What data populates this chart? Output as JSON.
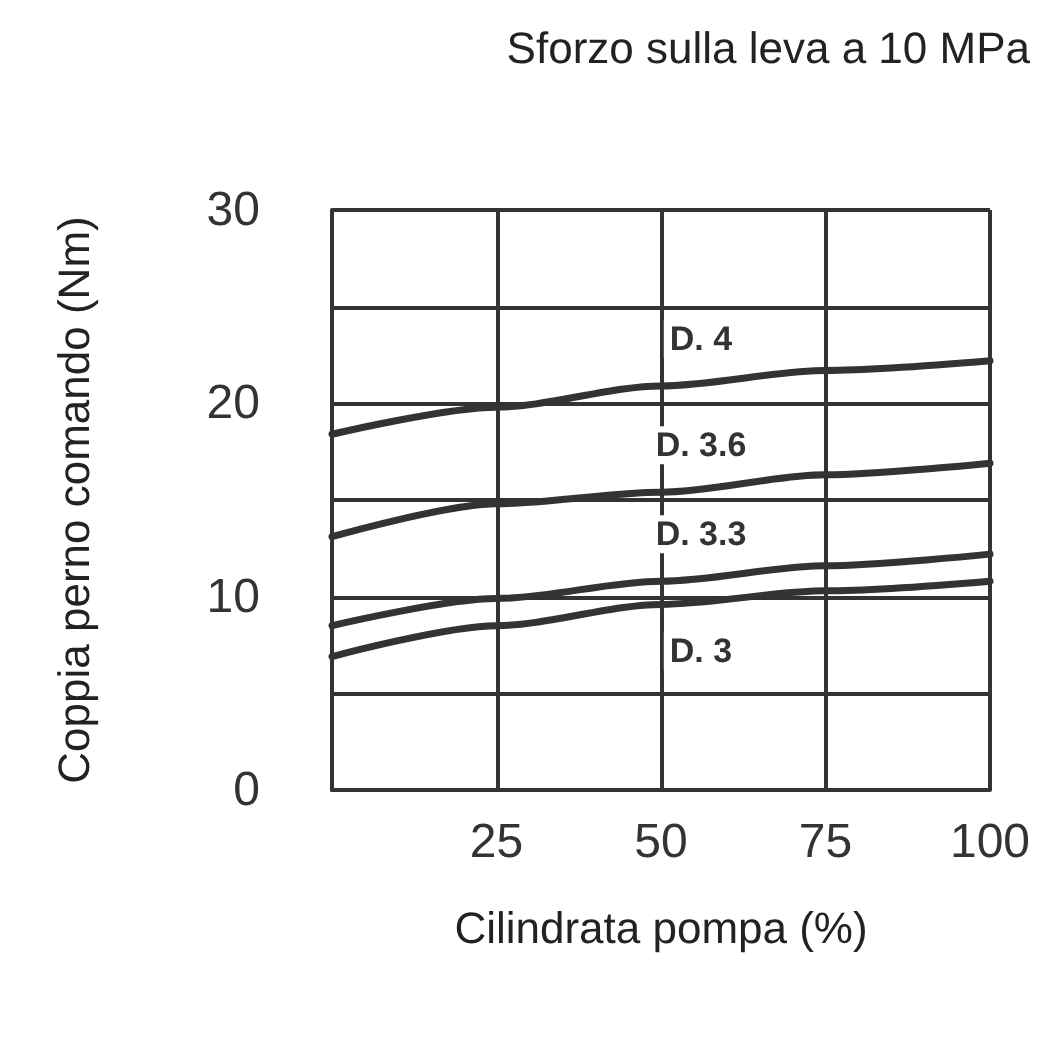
{
  "chart_data": {
    "type": "line",
    "title": "Sforzo sulla leva a 10 MPa",
    "xlabel": "Cilindrata pompa (%)",
    "ylabel": "Coppia perno comando (Nm)",
    "x": [
      0,
      25,
      50,
      75,
      100
    ],
    "series": [
      {
        "name": "D. 4",
        "color": "#333333",
        "values": [
          18.4,
          19.8,
          20.9,
          21.7,
          22.2
        ]
      },
      {
        "name": "D. 3.6",
        "color": "#333333",
        "values": [
          13.1,
          14.8,
          15.4,
          16.3,
          16.9
        ]
      },
      {
        "name": "D. 3.3",
        "color": "#333333",
        "values": [
          8.5,
          9.9,
          10.8,
          11.6,
          12.2
        ]
      },
      {
        "name": "D. 3",
        "color": "#333333",
        "values": [
          6.9,
          8.5,
          9.6,
          10.3,
          10.8
        ]
      }
    ],
    "xlim": [
      0,
      100
    ],
    "xticks": [
      {
        "value": 0,
        "label": null
      },
      25,
      50,
      75,
      100
    ],
    "ylim": [
      0,
      30
    ],
    "yticks": [
      0,
      {
        "value": 5,
        "label": null
      },
      10,
      {
        "value": 15,
        "label": null
      },
      20,
      {
        "value": 25,
        "label": null
      },
      30
    ],
    "grid": true,
    "marker": "none",
    "line_style": "solid"
  }
}
